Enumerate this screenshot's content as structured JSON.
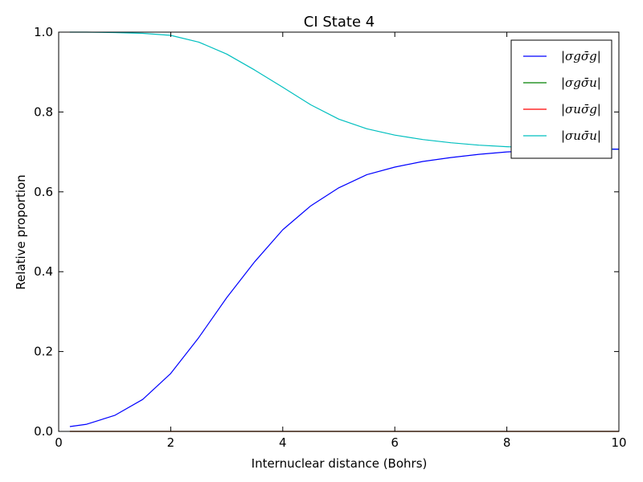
{
  "chart_data": {
    "type": "line",
    "title": "CI State 4",
    "xlabel": "Internuclear distance (Bohrs)",
    "ylabel": "Relative proportion",
    "xlim": [
      0,
      10
    ],
    "ylim": [
      0,
      1.0
    ],
    "xticks": [
      "0",
      "2",
      "4",
      "6",
      "8",
      "10"
    ],
    "yticks": [
      "0.0",
      "0.2",
      "0.4",
      "0.6",
      "0.8",
      "1.0"
    ],
    "grid": false,
    "legend_position": "top-right",
    "x": [
      0.2,
      0.5,
      1.0,
      1.5,
      2.0,
      2.5,
      3.0,
      3.5,
      4.0,
      4.5,
      5.0,
      5.5,
      6.0,
      6.5,
      7.0,
      7.5,
      8.0,
      8.5,
      9.0,
      9.5,
      10.0
    ],
    "series": [
      {
        "name": "|σgσ̄g|",
        "color": "#0000ff",
        "values": [
          0.012,
          0.018,
          0.04,
          0.08,
          0.145,
          0.235,
          0.335,
          0.425,
          0.505,
          0.565,
          0.61,
          0.643,
          0.662,
          0.676,
          0.686,
          0.694,
          0.7,
          0.703,
          0.705,
          0.706,
          0.707
        ]
      },
      {
        "name": "|σgσ̄u|",
        "color": "#008000",
        "values": [
          0.0,
          0.0,
          0.0,
          0.0,
          0.0,
          0.0,
          0.0,
          0.0,
          0.0,
          0.0,
          0.0,
          0.0,
          0.0,
          0.0,
          0.0,
          0.0,
          0.0,
          0.0,
          0.0,
          0.0,
          0.0
        ]
      },
      {
        "name": "|σuσ̄g|",
        "color": "#ff0000",
        "values": [
          0.0,
          0.0,
          0.0,
          0.0,
          0.0,
          0.0,
          0.0,
          0.0,
          0.0,
          0.0,
          0.0,
          0.0,
          0.0,
          0.0,
          0.0,
          0.0,
          0.0,
          0.0,
          0.0,
          0.0,
          0.0
        ]
      },
      {
        "name": "|σuσ̄u|",
        "color": "#00bfbf",
        "values": [
          1.0,
          1.0,
          0.999,
          0.997,
          0.992,
          0.975,
          0.945,
          0.905,
          0.862,
          0.818,
          0.782,
          0.758,
          0.742,
          0.731,
          0.723,
          0.717,
          0.713,
          0.71,
          0.709,
          0.708,
          0.707
        ]
      }
    ]
  }
}
